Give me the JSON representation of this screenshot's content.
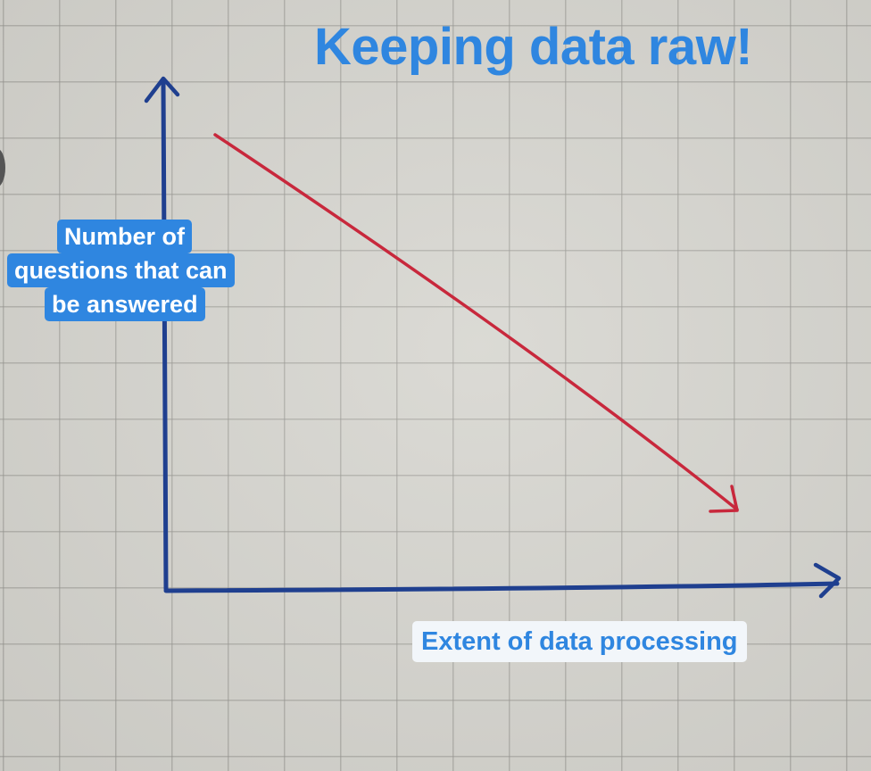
{
  "title": "Keeping data raw!",
  "y_axis_label": {
    "line1": "Number of",
    "line2": "questions that can",
    "line3": "be answered"
  },
  "x_axis_label": "Extent of data processing",
  "colors": {
    "title_text": "#2f86e0",
    "label_background": "#2f86e0",
    "axis_ink": "#1f3f8f",
    "trend_arrow": "#c8283c",
    "paper": "#d6d5cf"
  }
}
